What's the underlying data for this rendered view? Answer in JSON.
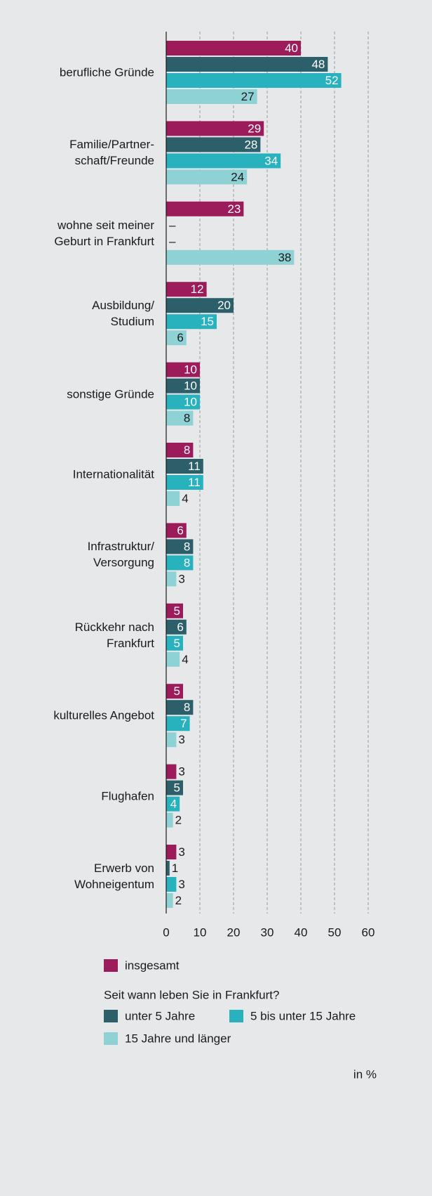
{
  "chart_data": {
    "type": "bar",
    "orientation": "horizontal",
    "categories": [
      "berufliche Gründe",
      "Familie/Partner-\nschaft/Freunde",
      "wohne seit meiner\nGeburt in Frankfurt",
      "Ausbildung/\nStudium",
      "sonstige Gründe",
      "Internationalität",
      "Infrastruktur/\nVersorgung",
      "Rückkehr nach\nFrankfurt",
      "kulturelles Angebot",
      "Flughafen",
      "Erwerb von\nWohneigentum"
    ],
    "series": [
      {
        "name": "insgesamt",
        "color": "#9b1b5b",
        "values": [
          40,
          29,
          23,
          12,
          10,
          8,
          6,
          5,
          5,
          3,
          3
        ]
      },
      {
        "name": "unter 5 Jahre",
        "color": "#2d5f6a",
        "values": [
          48,
          28,
          null,
          20,
          10,
          11,
          8,
          6,
          8,
          5,
          1
        ],
        "value_labels": [
          "48",
          "28",
          "–",
          "20",
          "10",
          "11",
          "8",
          "6",
          "8",
          "5",
          "1"
        ]
      },
      {
        "name": "5 bis unter 15 Jahre",
        "color": "#27b2be",
        "values": [
          52,
          34,
          null,
          15,
          10,
          11,
          8,
          5,
          7,
          4,
          3
        ],
        "value_labels": [
          "52",
          "34",
          "–",
          "15",
          "10",
          "11",
          "8",
          "5",
          "7",
          "4",
          "3"
        ]
      },
      {
        "name": "15 Jahre und länger",
        "color": "#8fd2d6",
        "values": [
          27,
          24,
          38,
          6,
          8,
          4,
          3,
          4,
          3,
          2,
          2
        ]
      }
    ],
    "legend_title": "Seit wann leben Sie in Frankfurt?",
    "unit_label": "in %",
    "xlim": [
      0,
      60
    ],
    "xticks": [
      0,
      10,
      20,
      30,
      40,
      50,
      60
    ],
    "grid": true
  }
}
